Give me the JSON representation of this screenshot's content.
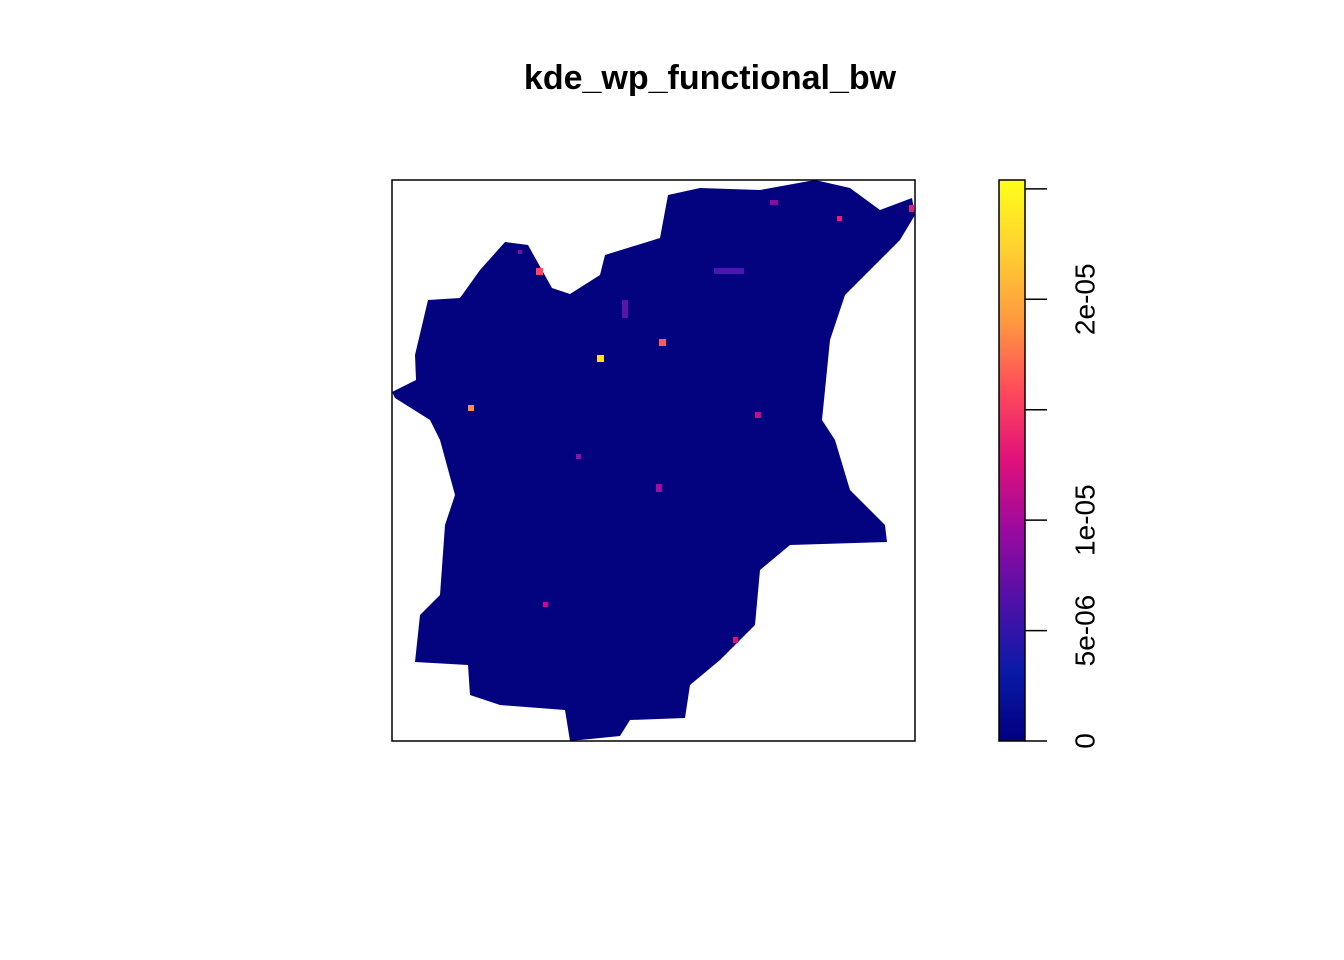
{
  "chart_data": {
    "type": "raster",
    "title": "kde_wp_functional_bw",
    "colorbar": {
      "colors": [
        "#00007f",
        "#0a1aa8",
        "#5010a8",
        "#9a0aa0",
        "#e0107a",
        "#ff4a5a",
        "#ff9a40",
        "#ffd030",
        "#ffff1a"
      ],
      "ylim": [
        0,
        2.54e-05
      ],
      "yticks": [
        0,
        {
          "value": 5e-06,
          "label": "5e-06"
        },
        {
          "value": 1e-05,
          "label": "1e-05"
        },
        {
          "value": 1.5e-05,
          "label": null
        },
        {
          "value": 2e-05,
          "label": "2e-05"
        },
        {
          "value": 2.5e-05,
          "label": null
        }
      ]
    }
  }
}
